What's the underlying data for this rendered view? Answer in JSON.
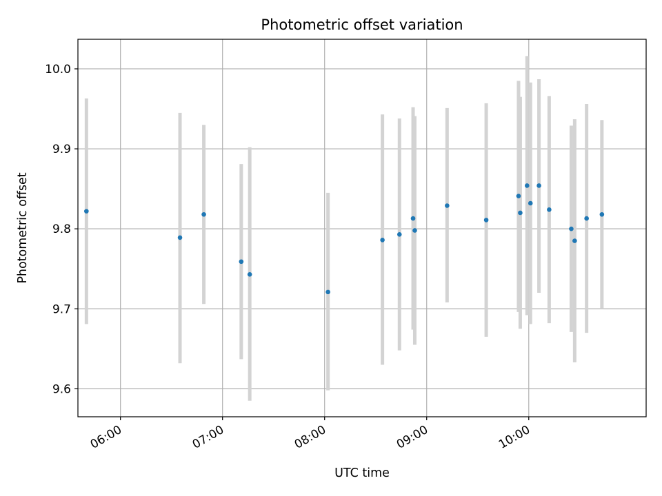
{
  "chart_data": {
    "type": "scatter",
    "title": "Photometric offset variation",
    "xlabel": "UTC time",
    "ylabel": "Photometric offset",
    "x_format": "time HH:MM (UTC)",
    "xlim": [
      "05:35",
      "11:09"
    ],
    "ylim": [
      9.565,
      10.037
    ],
    "x_ticks": [
      "06:00",
      "07:00",
      "08:00",
      "09:00",
      "10:00"
    ],
    "y_ticks": [
      9.6,
      9.7,
      9.8,
      9.9,
      10.0
    ],
    "y_tick_labels": [
      "9.6",
      "9.7",
      "9.8",
      "9.9",
      "10.0"
    ],
    "grid": true,
    "point_color": "#1f77b4",
    "errorbar_color": "#d3d3d3",
    "series": [
      {
        "points": [
          {
            "x": "05:40",
            "y": 9.822,
            "yerr_low": 9.681,
            "yerr_high": 9.963
          },
          {
            "x": "06:35",
            "y": 9.789,
            "yerr_low": 9.632,
            "yerr_high": 9.945
          },
          {
            "x": "06:49",
            "y": 9.818,
            "yerr_low": 9.706,
            "yerr_high": 9.93
          },
          {
            "x": "07:11",
            "y": 9.759,
            "yerr_low": 9.637,
            "yerr_high": 9.881
          },
          {
            "x": "07:16",
            "y": 9.743,
            "yerr_low": 9.585,
            "yerr_high": 9.902
          },
          {
            "x": "08:02",
            "y": 9.721,
            "yerr_low": 9.598,
            "yerr_high": 9.845
          },
          {
            "x": "08:34",
            "y": 9.786,
            "yerr_low": 9.63,
            "yerr_high": 9.943
          },
          {
            "x": "08:44",
            "y": 9.793,
            "yerr_low": 9.648,
            "yerr_high": 9.938
          },
          {
            "x": "08:52",
            "y": 9.813,
            "yerr_low": 9.674,
            "yerr_high": 9.952
          },
          {
            "x": "08:53",
            "y": 9.798,
            "yerr_low": 9.655,
            "yerr_high": 9.941
          },
          {
            "x": "09:12",
            "y": 9.829,
            "yerr_low": 9.708,
            "yerr_high": 9.951
          },
          {
            "x": "09:35",
            "y": 9.811,
            "yerr_low": 9.665,
            "yerr_high": 9.957
          },
          {
            "x": "09:54",
            "y": 9.841,
            "yerr_low": 9.696,
            "yerr_high": 9.985
          },
          {
            "x": "09:55",
            "y": 9.82,
            "yerr_low": 9.675,
            "yerr_high": 9.965
          },
          {
            "x": "09:59",
            "y": 9.854,
            "yerr_low": 9.692,
            "yerr_high": 10.016
          },
          {
            "x": "10:01",
            "y": 9.832,
            "yerr_low": 9.681,
            "yerr_high": 9.983
          },
          {
            "x": "10:06",
            "y": 9.854,
            "yerr_low": 9.72,
            "yerr_high": 9.987
          },
          {
            "x": "10:12",
            "y": 9.824,
            "yerr_low": 9.682,
            "yerr_high": 9.966
          },
          {
            "x": "10:25",
            "y": 9.8,
            "yerr_low": 9.671,
            "yerr_high": 9.929
          },
          {
            "x": "10:27",
            "y": 9.785,
            "yerr_low": 9.633,
            "yerr_high": 9.937
          },
          {
            "x": "10:34",
            "y": 9.813,
            "yerr_low": 9.67,
            "yerr_high": 9.956
          },
          {
            "x": "10:43",
            "y": 9.818,
            "yerr_low": 9.7,
            "yerr_high": 9.936
          }
        ]
      }
    ]
  }
}
